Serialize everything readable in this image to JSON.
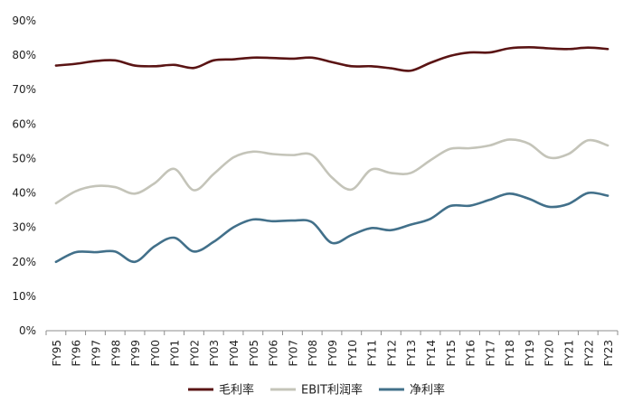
{
  "chart_data": {
    "type": "line",
    "title": "",
    "xlabel": "",
    "ylabel": "",
    "ylim": [
      0,
      90
    ],
    "ytick_labels": [
      "0%",
      "10%",
      "20%",
      "30%",
      "40%",
      "50%",
      "60%",
      "70%",
      "80%",
      "90%"
    ],
    "categories": [
      "FY95",
      "FY96",
      "FY97",
      "FY98",
      "FY99",
      "FY00",
      "FY01",
      "FY02",
      "FY03",
      "FY04",
      "FY05",
      "FY06",
      "FY07",
      "FY08",
      "FY09",
      "FY10",
      "FY11",
      "FY12",
      "FY13",
      "FY14",
      "FY15",
      "FY16",
      "FY17",
      "FY18",
      "FY19",
      "FY20",
      "FY21",
      "FY22",
      "FY23"
    ],
    "series": [
      {
        "name": "毛利率",
        "color": "#5a1414",
        "values": [
          77.0,
          77.5,
          78.3,
          78.5,
          77.0,
          76.8,
          77.2,
          76.3,
          78.5,
          78.8,
          79.3,
          79.2,
          79.0,
          79.3,
          78.0,
          76.8,
          76.8,
          76.2,
          75.5,
          77.8,
          79.8,
          80.8,
          80.8,
          82.0,
          82.3,
          82.0,
          81.8,
          82.2,
          81.8
        ]
      },
      {
        "name": "EBIT利润率",
        "color": "#c4c4b9",
        "values": [
          37.0,
          40.5,
          42.0,
          41.7,
          39.8,
          42.8,
          47.0,
          40.8,
          45.5,
          50.3,
          52.0,
          51.3,
          51.0,
          51.0,
          44.5,
          41.0,
          46.8,
          45.8,
          45.8,
          49.5,
          52.8,
          53.0,
          53.8,
          55.5,
          54.3,
          50.3,
          51.3,
          55.3,
          53.8
        ]
      },
      {
        "name": "净利率",
        "color": "#42708a",
        "values": [
          20.0,
          22.8,
          22.8,
          23.0,
          20.0,
          24.5,
          27.0,
          23.0,
          25.8,
          30.0,
          32.3,
          31.8,
          32.0,
          31.5,
          25.5,
          27.8,
          29.8,
          29.2,
          30.8,
          32.5,
          36.2,
          36.3,
          38.0,
          39.8,
          38.3,
          36.0,
          36.8,
          40.0,
          39.2
        ]
      }
    ],
    "legend_position": "bottom-center",
    "grid": false
  }
}
